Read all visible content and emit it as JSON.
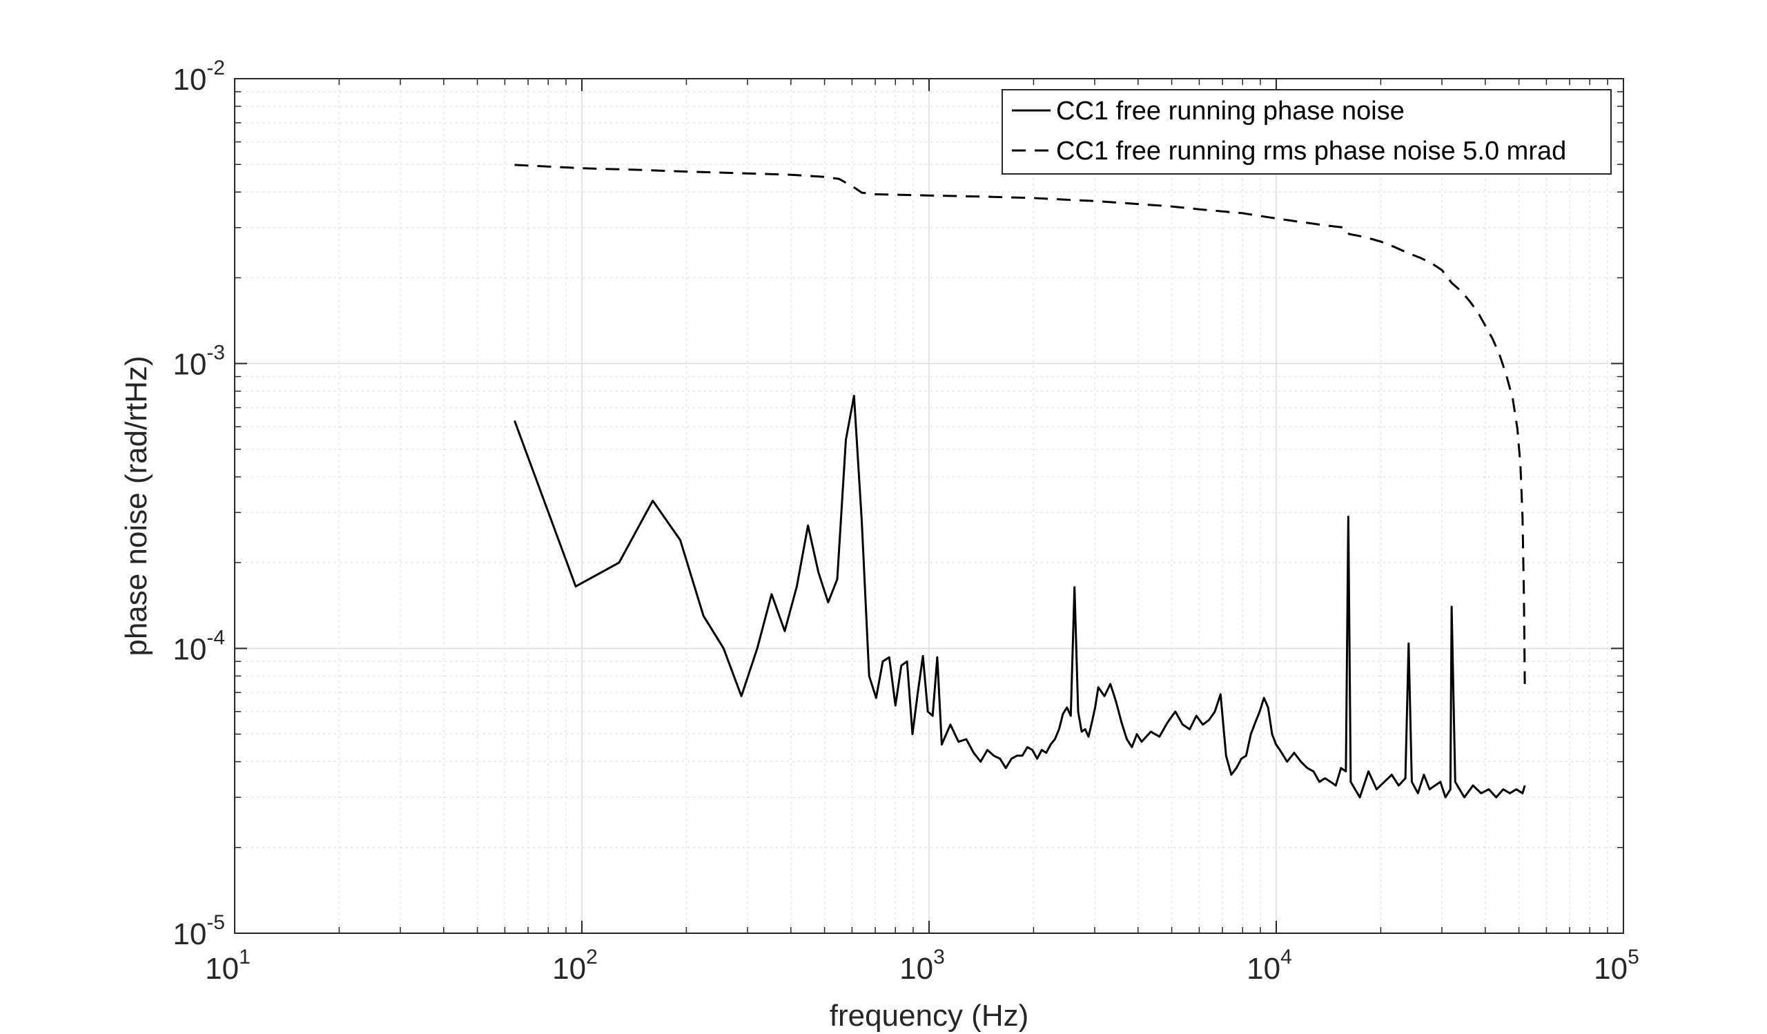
{
  "chart_data": {
    "type": "line",
    "title": "",
    "xlabel": "frequency (Hz)",
    "ylabel": "phase noise (rad/rtHz)",
    "xscale": "log",
    "yscale": "log",
    "xlim": [
      10,
      100000
    ],
    "ylim": [
      1e-05,
      0.01
    ],
    "grid": true,
    "minor_grid": true,
    "legend_position": "top-right",
    "x_tick_labels": [
      {
        "value": 10,
        "base": "10",
        "exp": "1"
      },
      {
        "value": 100,
        "base": "10",
        "exp": "2"
      },
      {
        "value": 1000,
        "base": "10",
        "exp": "3"
      },
      {
        "value": 10000,
        "base": "10",
        "exp": "4"
      },
      {
        "value": 100000,
        "base": "10",
        "exp": "5"
      }
    ],
    "y_tick_labels": [
      {
        "value": 1e-05,
        "base": "10",
        "exp": "-5"
      },
      {
        "value": 0.0001,
        "base": "10",
        "exp": "-4"
      },
      {
        "value": 0.001,
        "base": "10",
        "exp": "-3"
      },
      {
        "value": 0.01,
        "base": "10",
        "exp": "-2"
      }
    ],
    "series": [
      {
        "name": "CC1 free running phase noise",
        "style": "solid",
        "color": "#000000",
        "points": [
          [
            64,
            0.00063
          ],
          [
            96,
            0.000165
          ],
          [
            128,
            0.0002
          ],
          [
            160,
            0.00033
          ],
          [
            192,
            0.00024
          ],
          [
            224,
            0.00013
          ],
          [
            256,
            0.0001
          ],
          [
            288,
            6.8e-05
          ],
          [
            320,
            0.0001
          ],
          [
            352,
            0.000155
          ],
          [
            384,
            0.000115
          ],
          [
            416,
            0.000165
          ],
          [
            448,
            0.00027
          ],
          [
            480,
            0.000185
          ],
          [
            512,
            0.000145
          ],
          [
            544,
            0.000175
          ],
          [
            576,
            0.00054
          ],
          [
            608,
            0.00077
          ],
          [
            640,
            0.00028
          ],
          [
            672,
            8e-05
          ],
          [
            704,
            6.7e-05
          ],
          [
            736,
            9e-05
          ],
          [
            768,
            9.3e-05
          ],
          [
            800,
            6.3e-05
          ],
          [
            832,
            8.7e-05
          ],
          [
            864,
            9e-05
          ],
          [
            896,
            5e-05
          ],
          [
            928,
            7e-05
          ],
          [
            960,
            9.4e-05
          ],
          [
            992,
            6e-05
          ],
          [
            1024,
            5.8e-05
          ],
          [
            1056,
            9.3e-05
          ],
          [
            1088,
            4.6e-05
          ],
          [
            1152,
            5.4e-05
          ],
          [
            1216,
            4.7e-05
          ],
          [
            1280,
            4.8e-05
          ],
          [
            1344,
            4.3e-05
          ],
          [
            1408,
            4e-05
          ],
          [
            1472,
            4.4e-05
          ],
          [
            1536,
            4.2e-05
          ],
          [
            1600,
            4.1e-05
          ],
          [
            1664,
            3.8e-05
          ],
          [
            1728,
            4.1e-05
          ],
          [
            1792,
            4.2e-05
          ],
          [
            1856,
            4.2e-05
          ],
          [
            1920,
            4.5e-05
          ],
          [
            1984,
            4.4e-05
          ],
          [
            2048,
            4.1e-05
          ],
          [
            2112,
            4.4e-05
          ],
          [
            2176,
            4.3e-05
          ],
          [
            2240,
            4.6e-05
          ],
          [
            2304,
            4.8e-05
          ],
          [
            2368,
            5.2e-05
          ],
          [
            2432,
            5.9e-05
          ],
          [
            2496,
            6.2e-05
          ],
          [
            2560,
            5.8e-05
          ],
          [
            2624,
            0.000164
          ],
          [
            2688,
            6e-05
          ],
          [
            2752,
            5.1e-05
          ],
          [
            2816,
            5.2e-05
          ],
          [
            2880,
            4.9e-05
          ],
          [
            2944,
            5.5e-05
          ],
          [
            3008,
            6.2e-05
          ],
          [
            3072,
            7.3e-05
          ],
          [
            3200,
            6.8e-05
          ],
          [
            3328,
            7.5e-05
          ],
          [
            3456,
            6.5e-05
          ],
          [
            3584,
            5.5e-05
          ],
          [
            3712,
            4.8e-05
          ],
          [
            3840,
            4.5e-05
          ],
          [
            3968,
            5e-05
          ],
          [
            4096,
            4.7e-05
          ],
          [
            4352,
            5.1e-05
          ],
          [
            4608,
            4.9e-05
          ],
          [
            4864,
            5.5e-05
          ],
          [
            5120,
            6e-05
          ],
          [
            5376,
            5.4e-05
          ],
          [
            5632,
            5.2e-05
          ],
          [
            5888,
            5.8e-05
          ],
          [
            6144,
            5.4e-05
          ],
          [
            6400,
            5.6e-05
          ],
          [
            6656,
            6e-05
          ],
          [
            6912,
            6.9e-05
          ],
          [
            7168,
            4.2e-05
          ],
          [
            7424,
            3.6e-05
          ],
          [
            7680,
            3.8e-05
          ],
          [
            7936,
            4.1e-05
          ],
          [
            8192,
            4.2e-05
          ],
          [
            8448,
            5e-05
          ],
          [
            8704,
            5.5e-05
          ],
          [
            8960,
            6e-05
          ],
          [
            9216,
            6.7e-05
          ],
          [
            9472,
            6.2e-05
          ],
          [
            9728,
            5e-05
          ],
          [
            9984,
            4.6e-05
          ],
          [
            10240,
            4.4e-05
          ],
          [
            10752,
            4e-05
          ],
          [
            11264,
            4.3e-05
          ],
          [
            11776,
            4e-05
          ],
          [
            12288,
            3.8e-05
          ],
          [
            12800,
            3.7e-05
          ],
          [
            13312,
            3.4e-05
          ],
          [
            13824,
            3.5e-05
          ],
          [
            14336,
            3.4e-05
          ],
          [
            14848,
            3.3e-05
          ],
          [
            15360,
            3.8e-05
          ],
          [
            15872,
            3.7e-05
          ],
          [
            16128,
            0.00029
          ],
          [
            16384,
            3.4e-05
          ],
          [
            17408,
            3e-05
          ],
          [
            18432,
            3.7e-05
          ],
          [
            19456,
            3.2e-05
          ],
          [
            20480,
            3.4e-05
          ],
          [
            21504,
            3.6e-05
          ],
          [
            22528,
            3.3e-05
          ],
          [
            23552,
            3.5e-05
          ],
          [
            24064,
            0.000104
          ],
          [
            24576,
            3.4e-05
          ],
          [
            25600,
            3.1e-05
          ],
          [
            26624,
            3.6e-05
          ],
          [
            27648,
            3.2e-05
          ],
          [
            28672,
            3.3e-05
          ],
          [
            29696,
            3.4e-05
          ],
          [
            30720,
            3e-05
          ],
          [
            31744,
            3.2e-05
          ],
          [
            32000,
            0.00014
          ],
          [
            32768,
            3.4e-05
          ],
          [
            34816,
            3e-05
          ],
          [
            36864,
            3.3e-05
          ],
          [
            38912,
            3.1e-05
          ],
          [
            40960,
            3.2e-05
          ],
          [
            43008,
            3e-05
          ],
          [
            45056,
            3.2e-05
          ],
          [
            47104,
            3.1e-05
          ],
          [
            49152,
            3.2e-05
          ],
          [
            51200,
            3.1e-05
          ],
          [
            52000,
            3.3e-05
          ]
        ]
      },
      {
        "name": "CC1 free running rms phase noise 5.0 mrad",
        "style": "dashed",
        "color": "#000000",
        "points": [
          [
            64,
            0.00498
          ],
          [
            100,
            0.00485
          ],
          [
            150,
            0.00478
          ],
          [
            200,
            0.00472
          ],
          [
            300,
            0.00465
          ],
          [
            400,
            0.0046
          ],
          [
            500,
            0.00452
          ],
          [
            550,
            0.00445
          ],
          [
            600,
            0.0042
          ],
          [
            640,
            0.00398
          ],
          [
            700,
            0.00393
          ],
          [
            1000,
            0.00389
          ],
          [
            1500,
            0.00385
          ],
          [
            2000,
            0.00381
          ],
          [
            2600,
            0.00375
          ],
          [
            3000,
            0.00372
          ],
          [
            4000,
            0.00363
          ],
          [
            5000,
            0.00356
          ],
          [
            6000,
            0.00348
          ],
          [
            7000,
            0.00342
          ],
          [
            8000,
            0.00337
          ],
          [
            10000,
            0.00323
          ],
          [
            12000,
            0.00313
          ],
          [
            14000,
            0.00305
          ],
          [
            15800,
            0.003
          ],
          [
            16200,
            0.00285
          ],
          [
            18000,
            0.00278
          ],
          [
            20000,
            0.00268
          ],
          [
            22000,
            0.00256
          ],
          [
            24000,
            0.00244
          ],
          [
            26000,
            0.00235
          ],
          [
            28000,
            0.00225
          ],
          [
            30000,
            0.00213
          ],
          [
            32000,
            0.00192
          ],
          [
            34000,
            0.0018
          ],
          [
            36000,
            0.00166
          ],
          [
            38000,
            0.00152
          ],
          [
            40000,
            0.00136
          ],
          [
            42000,
            0.00122
          ],
          [
            44000,
            0.00107
          ],
          [
            46000,
            0.00091
          ],
          [
            48000,
            0.00075
          ],
          [
            49500,
            0.00059
          ],
          [
            50500,
            0.00044
          ],
          [
            51200,
            0.00029
          ],
          [
            51700,
            0.00015
          ],
          [
            52000,
            7.5e-05
          ]
        ]
      }
    ]
  }
}
